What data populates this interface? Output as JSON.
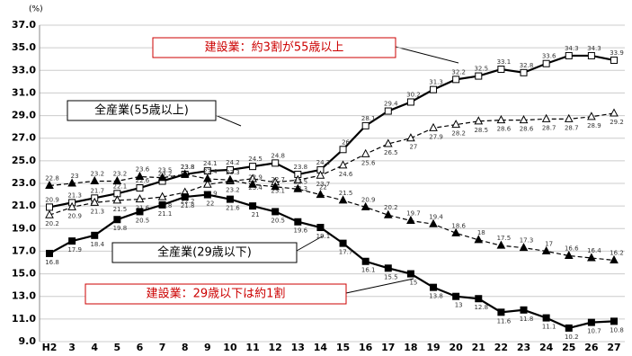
{
  "chart_data": {
    "type": "line",
    "y_unit": "(%)",
    "categories": [
      "H2",
      "3",
      "4",
      "5",
      "6",
      "7",
      "8",
      "9",
      "10",
      "11",
      "12",
      "13",
      "14",
      "15",
      "16",
      "17",
      "18",
      "19",
      "20",
      "21",
      "22",
      "23",
      "24",
      "25",
      "26",
      "27"
    ],
    "ylim": [
      9,
      37
    ],
    "yticks": [
      {
        "value": 9,
        "label": "9.0"
      },
      {
        "value": 11,
        "label": "11.0"
      },
      {
        "value": 13,
        "label": "13.0"
      },
      {
        "value": 15,
        "label": "15.0"
      },
      {
        "value": 17,
        "label": "17.0"
      },
      {
        "value": 19,
        "label": "19.0"
      },
      {
        "value": 21,
        "label": "21.0"
      },
      {
        "value": 23,
        "label": "23.0"
      },
      {
        "value": 25,
        "label": "25.0"
      },
      {
        "value": 27,
        "label": "27.0"
      },
      {
        "value": 29,
        "label": "29.0"
      },
      {
        "value": 31,
        "label": "31.0"
      },
      {
        "value": 33,
        "label": "33.0"
      },
      {
        "value": 35,
        "label": "35.0"
      },
      {
        "value": 37,
        "label": "37.0"
      }
    ],
    "grid": true,
    "series": [
      {
        "name": "建設業（55歳以上）",
        "color": "#000000",
        "marker": "open-square",
        "dashed": false,
        "values": [
          20.9,
          21.3,
          21.7,
          22.1,
          22.6,
          23.2,
          23.8,
          24.1,
          24.2,
          24.5,
          24.8,
          23.8,
          24.2,
          26.0,
          28.1,
          29.4,
          30.2,
          31.3,
          32.2,
          32.5,
          33.1,
          32.8,
          33.6,
          34.3,
          34.3,
          33.9
        ]
      },
      {
        "name": "全産業（55歳以上）",
        "color": "#000000",
        "marker": "open-triangle",
        "dashed": true,
        "values": [
          20.2,
          20.9,
          21.3,
          21.5,
          21.6,
          21.8,
          22.2,
          22.9,
          23.2,
          23.4,
          23.1,
          23.3,
          23.7,
          24.6,
          25.6,
          26.5,
          27.0,
          27.9,
          28.2,
          28.5,
          28.6,
          28.6,
          28.7,
          28.7,
          28.9,
          29.2
        ]
      },
      {
        "name": "全産業（29歳以下）",
        "color": "#000000",
        "marker": "filled-triangle",
        "dashed": true,
        "values": [
          22.8,
          23.0,
          23.2,
          23.2,
          23.6,
          23.5,
          23.8,
          23.4,
          23.3,
          22.9,
          22.7,
          22.5,
          22.0,
          21.5,
          20.9,
          20.2,
          19.7,
          19.4,
          18.6,
          18.0,
          17.5,
          17.3,
          17.0,
          16.6,
          16.4,
          16.2
        ]
      },
      {
        "name": "建設業（29歳以下）",
        "color": "#000000",
        "marker": "filled-square",
        "dashed": false,
        "values": [
          16.8,
          17.9,
          18.4,
          19.8,
          20.5,
          21.1,
          21.8,
          22.0,
          21.6,
          21.0,
          20.5,
          19.6,
          19.1,
          17.7,
          16.1,
          15.5,
          15.0,
          13.8,
          13.0,
          12.8,
          11.6,
          11.8,
          11.1,
          10.2,
          10.7,
          10.8
        ]
      }
    ],
    "annotations": [
      "建設業：約3割が55歳以上",
      "全産業(55歳以上)",
      "全産業(29歳以下)",
      "建設業：29歳以下は約1割"
    ]
  }
}
